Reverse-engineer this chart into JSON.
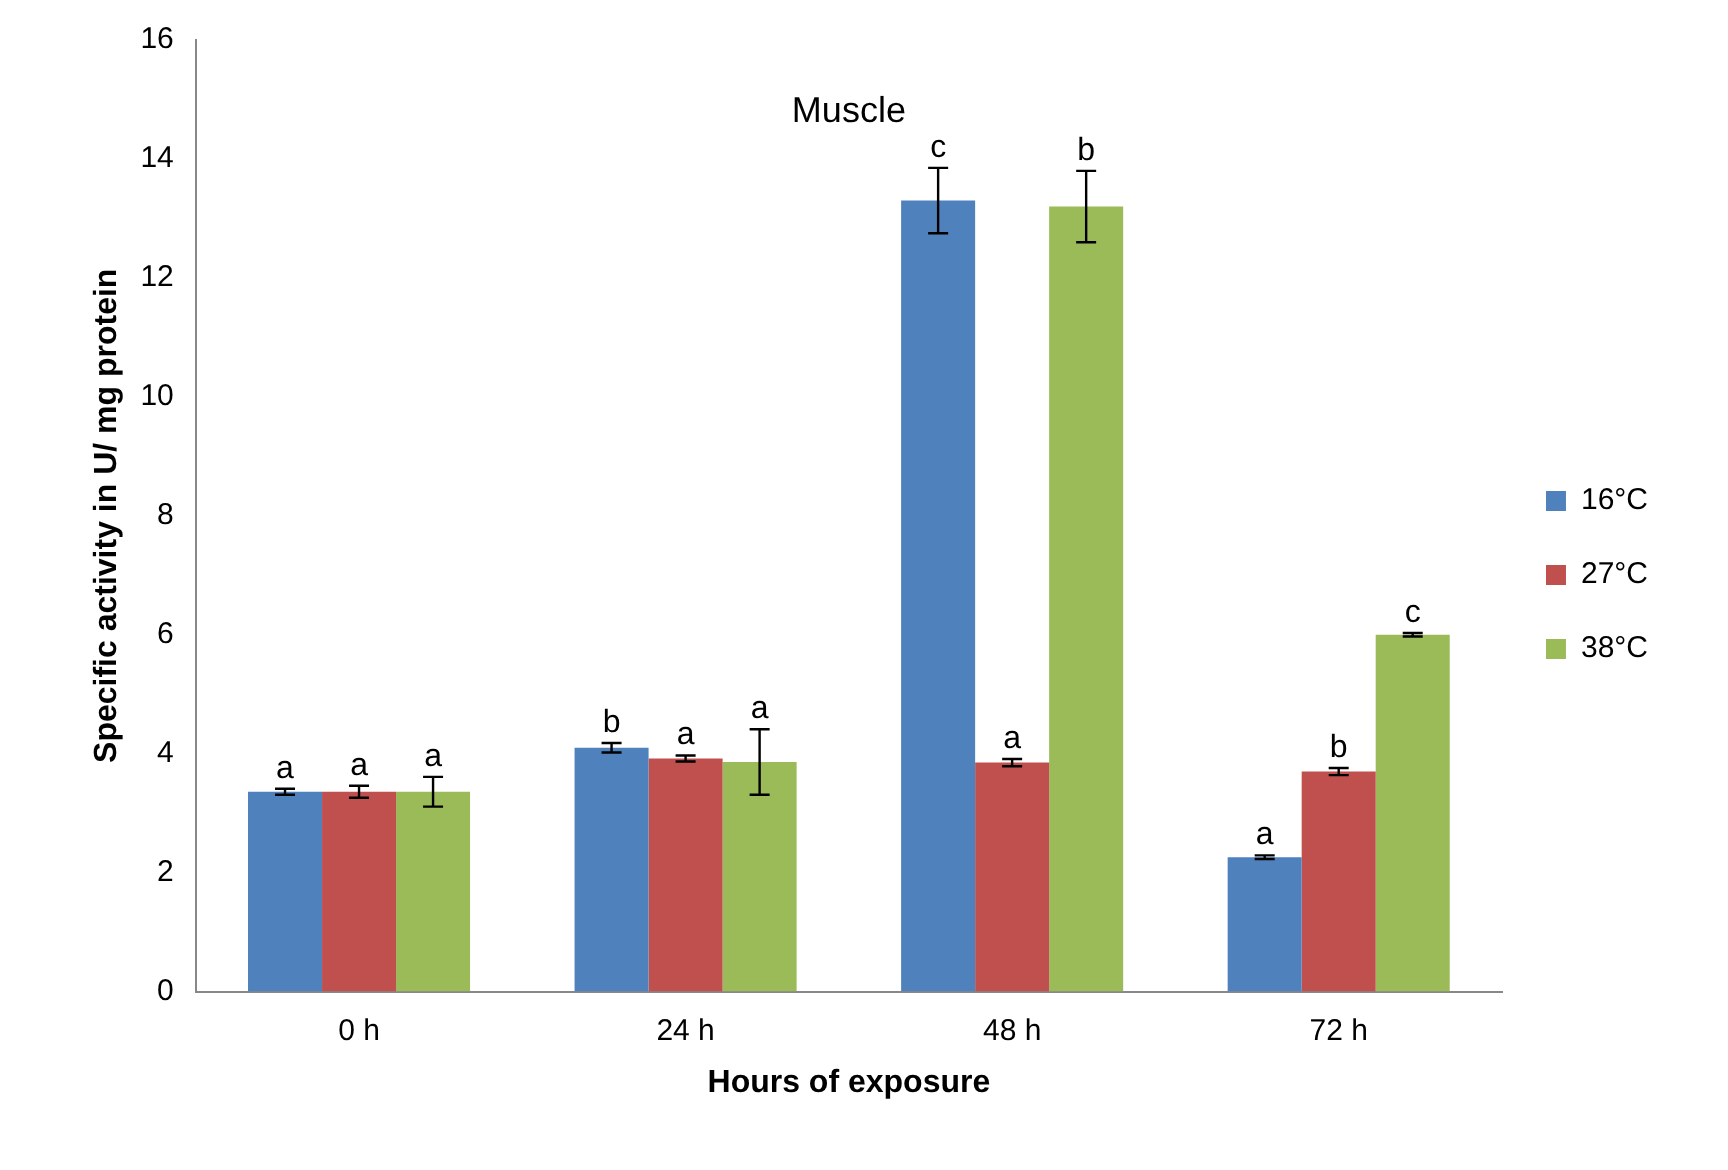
{
  "chart_data": {
    "type": "bar",
    "title": "Muscle",
    "xlabel": "Hours of exposure",
    "ylabel": "Specific activity in U/ mg protein",
    "categories": [
      "0 h",
      "24 h",
      "48 h",
      "72 h"
    ],
    "series": [
      {
        "name": "16°C",
        "color": "#4f81bd",
        "values": [
          3.36,
          4.1,
          13.3,
          2.26
        ],
        "errors": [
          0.05,
          0.08,
          0.55,
          0.03
        ],
        "value_labels": [
          "a",
          "b",
          "c",
          "a"
        ]
      },
      {
        "name": "27°C",
        "color": "#c0504d",
        "values": [
          3.36,
          3.92,
          3.85,
          3.7
        ],
        "errors": [
          0.1,
          0.05,
          0.06,
          0.06
        ],
        "value_labels": [
          "a",
          "a",
          "a",
          "b"
        ]
      },
      {
        "name": "38°C",
        "color": "#9bbb59",
        "values": [
          3.36,
          3.86,
          13.2,
          6.0
        ],
        "errors": [
          0.25,
          0.55,
          0.6,
          0.03
        ],
        "value_labels": [
          "a",
          "a",
          "b",
          "c"
        ]
      }
    ],
    "ylim": [
      0,
      16
    ],
    "yticks": [
      0,
      2,
      4,
      6,
      8,
      10,
      12,
      14,
      16
    ],
    "grid": false,
    "legend": "right"
  }
}
